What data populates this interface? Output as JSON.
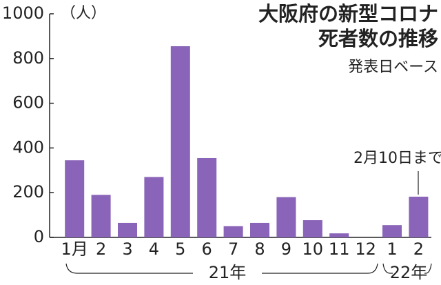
{
  "chart_data": {
    "type": "bar",
    "title": [
      "大阪府の新型コロナ",
      "死者数の推移"
    ],
    "subtitle": "発表日ベース",
    "y_label": "（人）",
    "categories": [
      "1月",
      "2",
      "3",
      "4",
      "5",
      "6",
      "7",
      "8",
      "9",
      "10",
      "11",
      "12",
      "1",
      "2"
    ],
    "values": [
      345,
      190,
      65,
      270,
      855,
      355,
      50,
      65,
      180,
      77,
      18,
      0,
      55,
      182
    ],
    "color": "#8a64b8",
    "ylim": [
      0,
      1000
    ],
    "yticks": [
      0,
      200,
      400,
      600,
      800,
      1000
    ],
    "grid": false,
    "year_labels": [
      "21年",
      "22年"
    ],
    "annotation": "2月10日まで"
  }
}
